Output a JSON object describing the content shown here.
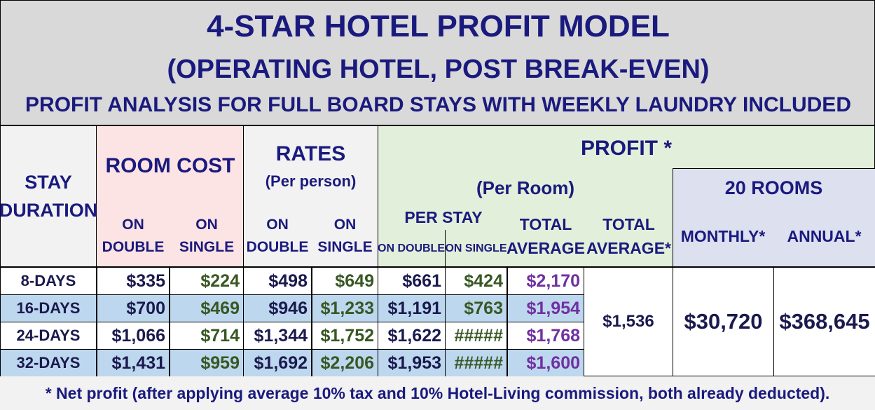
{
  "title": {
    "line1": "4-STAR HOTEL PROFIT MODEL",
    "line2": "(OPERATING HOTEL, POST BREAK-EVEN)",
    "line3": "PROFIT ANALYSIS FOR FULL BOARD STAYS WITH WEEKLY LAUNDRY INCLUDED"
  },
  "headers": {
    "stay": "STAY",
    "duration": "DURATION",
    "room_cost": "ROOM COST",
    "on": "ON",
    "double": "DOUBLE",
    "single": "SINGLE",
    "rates": "RATES",
    "per_person": "(Per person)",
    "profit": "PROFIT *",
    "per_room": "(Per Room)",
    "per_stay": "PER STAY",
    "on_double": "ON DOUBLE",
    "on_single": "ON SINGLE",
    "total": "TOTAL",
    "average": "AVERAGE",
    "average_star": "AVERAGE*",
    "rooms20": "20 ROOMS",
    "monthly": "MONTHLY*",
    "annual": "ANNUAL*"
  },
  "rows": [
    {
      "stay": "8-DAYS",
      "cost_double": "$335",
      "cost_single": "$224",
      "rate_double": "$498",
      "rate_single": "$649",
      "profit_double": "$661",
      "profit_single": "$424",
      "total_avg": "$2,170"
    },
    {
      "stay": "16-DAYS",
      "cost_double": "$700",
      "cost_single": "$469",
      "rate_double": "$946",
      "rate_single": "$1,233",
      "profit_double": "$1,191",
      "profit_single": "$763",
      "total_avg": "$1,954"
    },
    {
      "stay": "24-DAYS",
      "cost_double": "$1,066",
      "cost_single": "$714",
      "rate_double": "$1,344",
      "rate_single": "$1,752",
      "profit_double": "$1,622",
      "profit_single": "#####",
      "total_avg": "$1,768"
    },
    {
      "stay": "32-DAYS",
      "cost_double": "$1,431",
      "cost_single": "$959",
      "rate_double": "$1,692",
      "rate_single": "$2,206",
      "profit_double": "$1,953",
      "profit_single": "#####",
      "total_avg": "$1,600"
    }
  ],
  "totals": {
    "overall_average": "$1,536",
    "monthly": "$30,720",
    "annual": "$368,645"
  },
  "footer": "* Net profit (after applying average 10% tax and 10% Hotel-Living commission, both already deducted)."
}
